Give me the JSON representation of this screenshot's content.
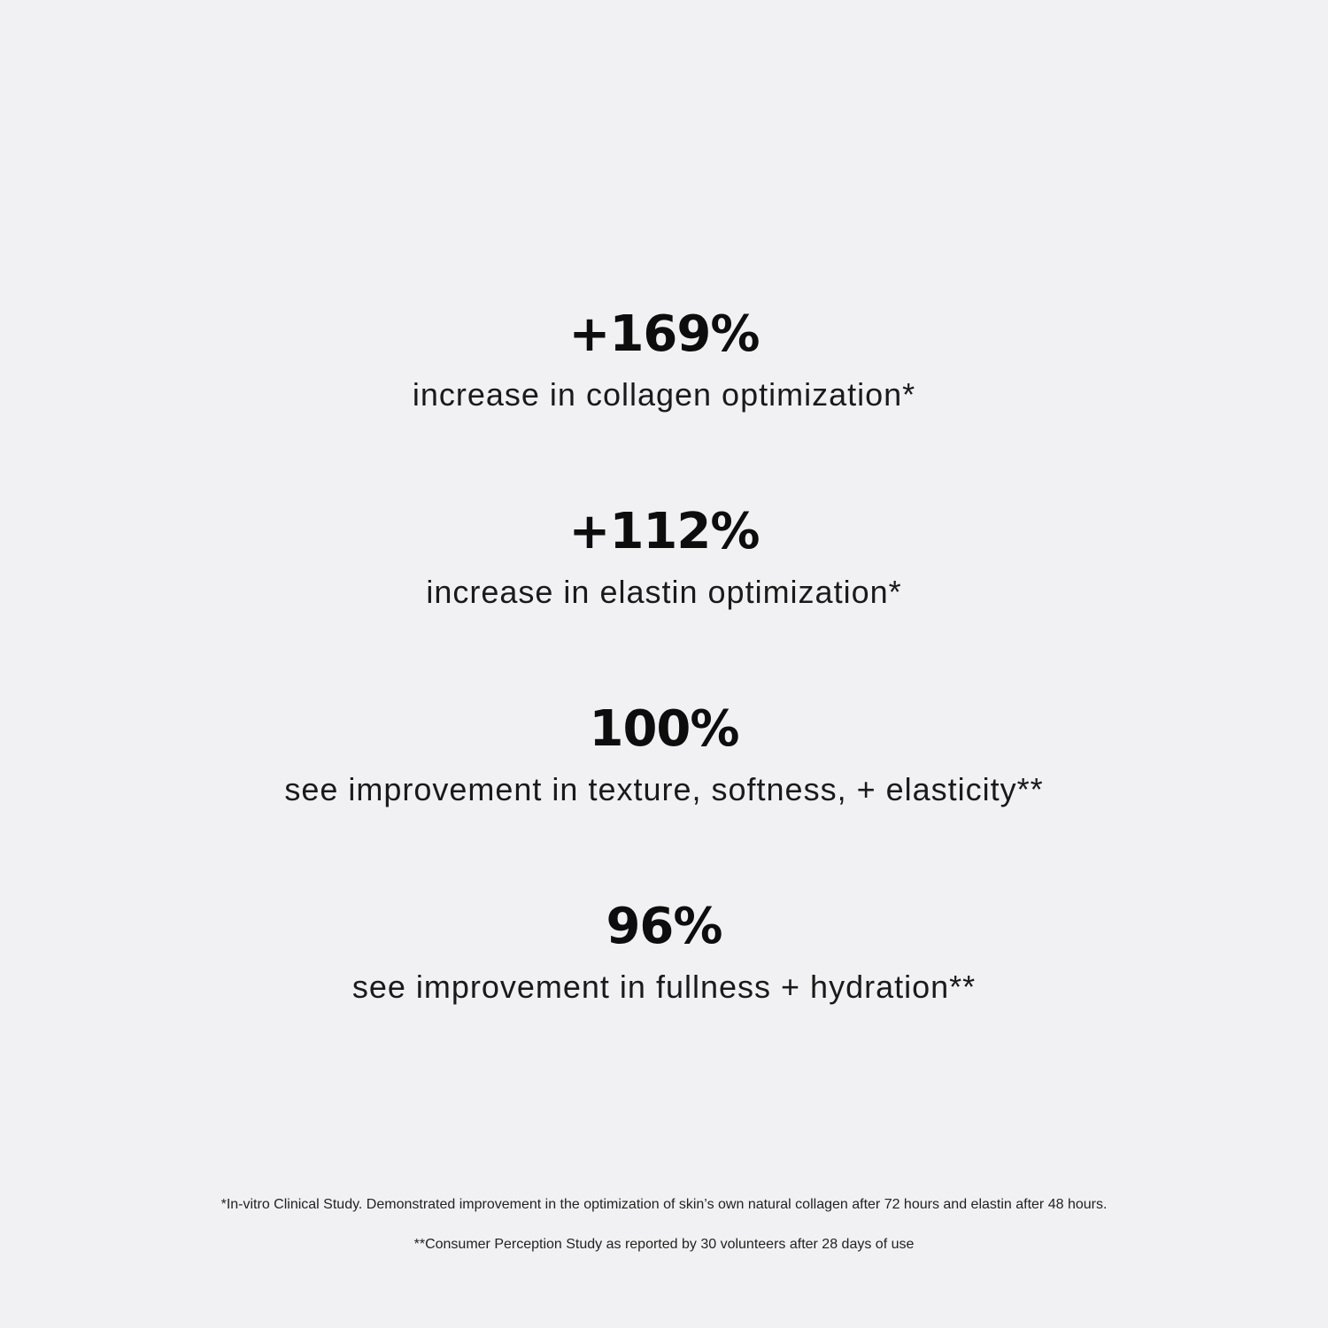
{
  "stats": [
    {
      "value": "+169%",
      "description": "increase in collagen optimization*"
    },
    {
      "value": "+112%",
      "description": "increase in elastin optimization*"
    },
    {
      "value": "100%",
      "description": "see improvement in texture, softness, + elasticity**"
    },
    {
      "value": "96%",
      "description": "see improvement in fullness + hydration**"
    }
  ],
  "footnotes": [
    "*In-vitro Clinical Study. Demonstrated improvement in the optimization of skin’s own natural collagen after 72 hours and elastin after 48 hours.",
    "**Consumer Perception Study as reported by 30 volunteers after 28 days of use"
  ],
  "colors": {
    "background": "#f1f1f3",
    "text": "#111111"
  }
}
